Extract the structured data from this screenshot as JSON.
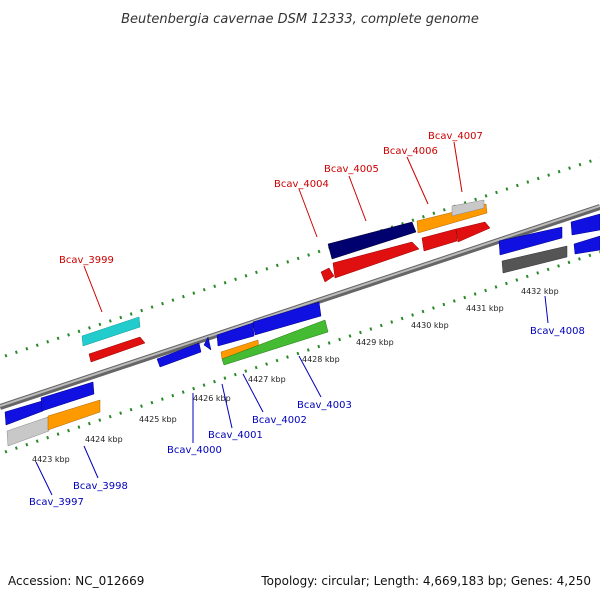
{
  "title": "Beutenbergia cavernae DSM 12333, complete genome",
  "footer": {
    "accession": "Accession: NC_012669",
    "info": "Topology: circular; Length: 4,669,183 bp; Genes: 4,250"
  },
  "colors": {
    "blue": "#1010e0",
    "red": "#e01010",
    "navy": "#00006e",
    "orange": "#ff9900",
    "green": "#44bb33",
    "cyan": "#22cccc",
    "grey": "#c8c8c8",
    "darkgrey": "#555555",
    "dotted_track": "#2a8a2a",
    "backbone": "#888888",
    "label_top": "#cc0000",
    "label_bottom": "#0000bb"
  },
  "scale": {
    "unit": "kbp",
    "ticks": [
      {
        "label": "4423 kbp"
      },
      {
        "label": "4424 kbp"
      },
      {
        "label": "4425 kbp"
      },
      {
        "label": "4426 kbp"
      },
      {
        "label": "4427 kbp"
      },
      {
        "label": "4428 kbp"
      },
      {
        "label": "4429 kbp"
      },
      {
        "label": "4430 kbp"
      },
      {
        "label": "4431 kbp"
      },
      {
        "label": "4432 kbp"
      }
    ]
  },
  "gene_labels": {
    "forward": [
      {
        "name": "Bcav_3999"
      },
      {
        "name": "Bcav_4004"
      },
      {
        "name": "Bcav_4005"
      },
      {
        "name": "Bcav_4006"
      },
      {
        "name": "Bcav_4007"
      }
    ],
    "reverse": [
      {
        "name": "Bcav_3997"
      },
      {
        "name": "Bcav_3998"
      },
      {
        "name": "Bcav_4000"
      },
      {
        "name": "Bcav_4001"
      },
      {
        "name": "Bcav_4002"
      },
      {
        "name": "Bcav_4003"
      },
      {
        "name": "Bcav_4008"
      }
    ]
  }
}
